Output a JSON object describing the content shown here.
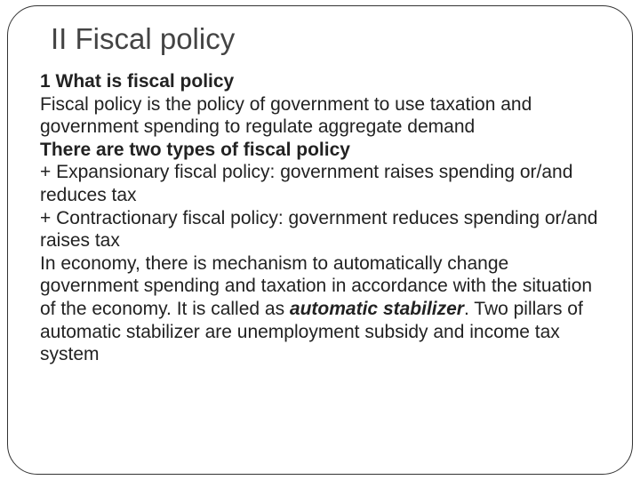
{
  "title_fontsize": 33,
  "body_fontsize": 21,
  "text_color": "#222222",
  "title_color": "#444444",
  "border_color": "#333333",
  "background_color": "#ffffff",
  "border_radius": 34,
  "title": "II Fiscal policy",
  "sub1": "1 What is fiscal policy",
  "p1": "Fiscal policy is the policy of government to use taxation and government spending to regulate aggregate demand",
  "sub2": "There are two types of fiscal policy",
  "b1": "+ Expansionary fiscal policy: government raises spending or/and reduces tax",
  "b2": "+ Contractionary fiscal policy: government reduces spending or/and raises tax",
  "p2a": "In economy, there is mechanism to automatically change government spending and taxation in accordance with the situation of the economy. It is called as ",
  "p2term": "automatic stabilizer",
  "p2b": ". Two pillars of automatic stabilizer are unemployment subsidy and income tax system"
}
